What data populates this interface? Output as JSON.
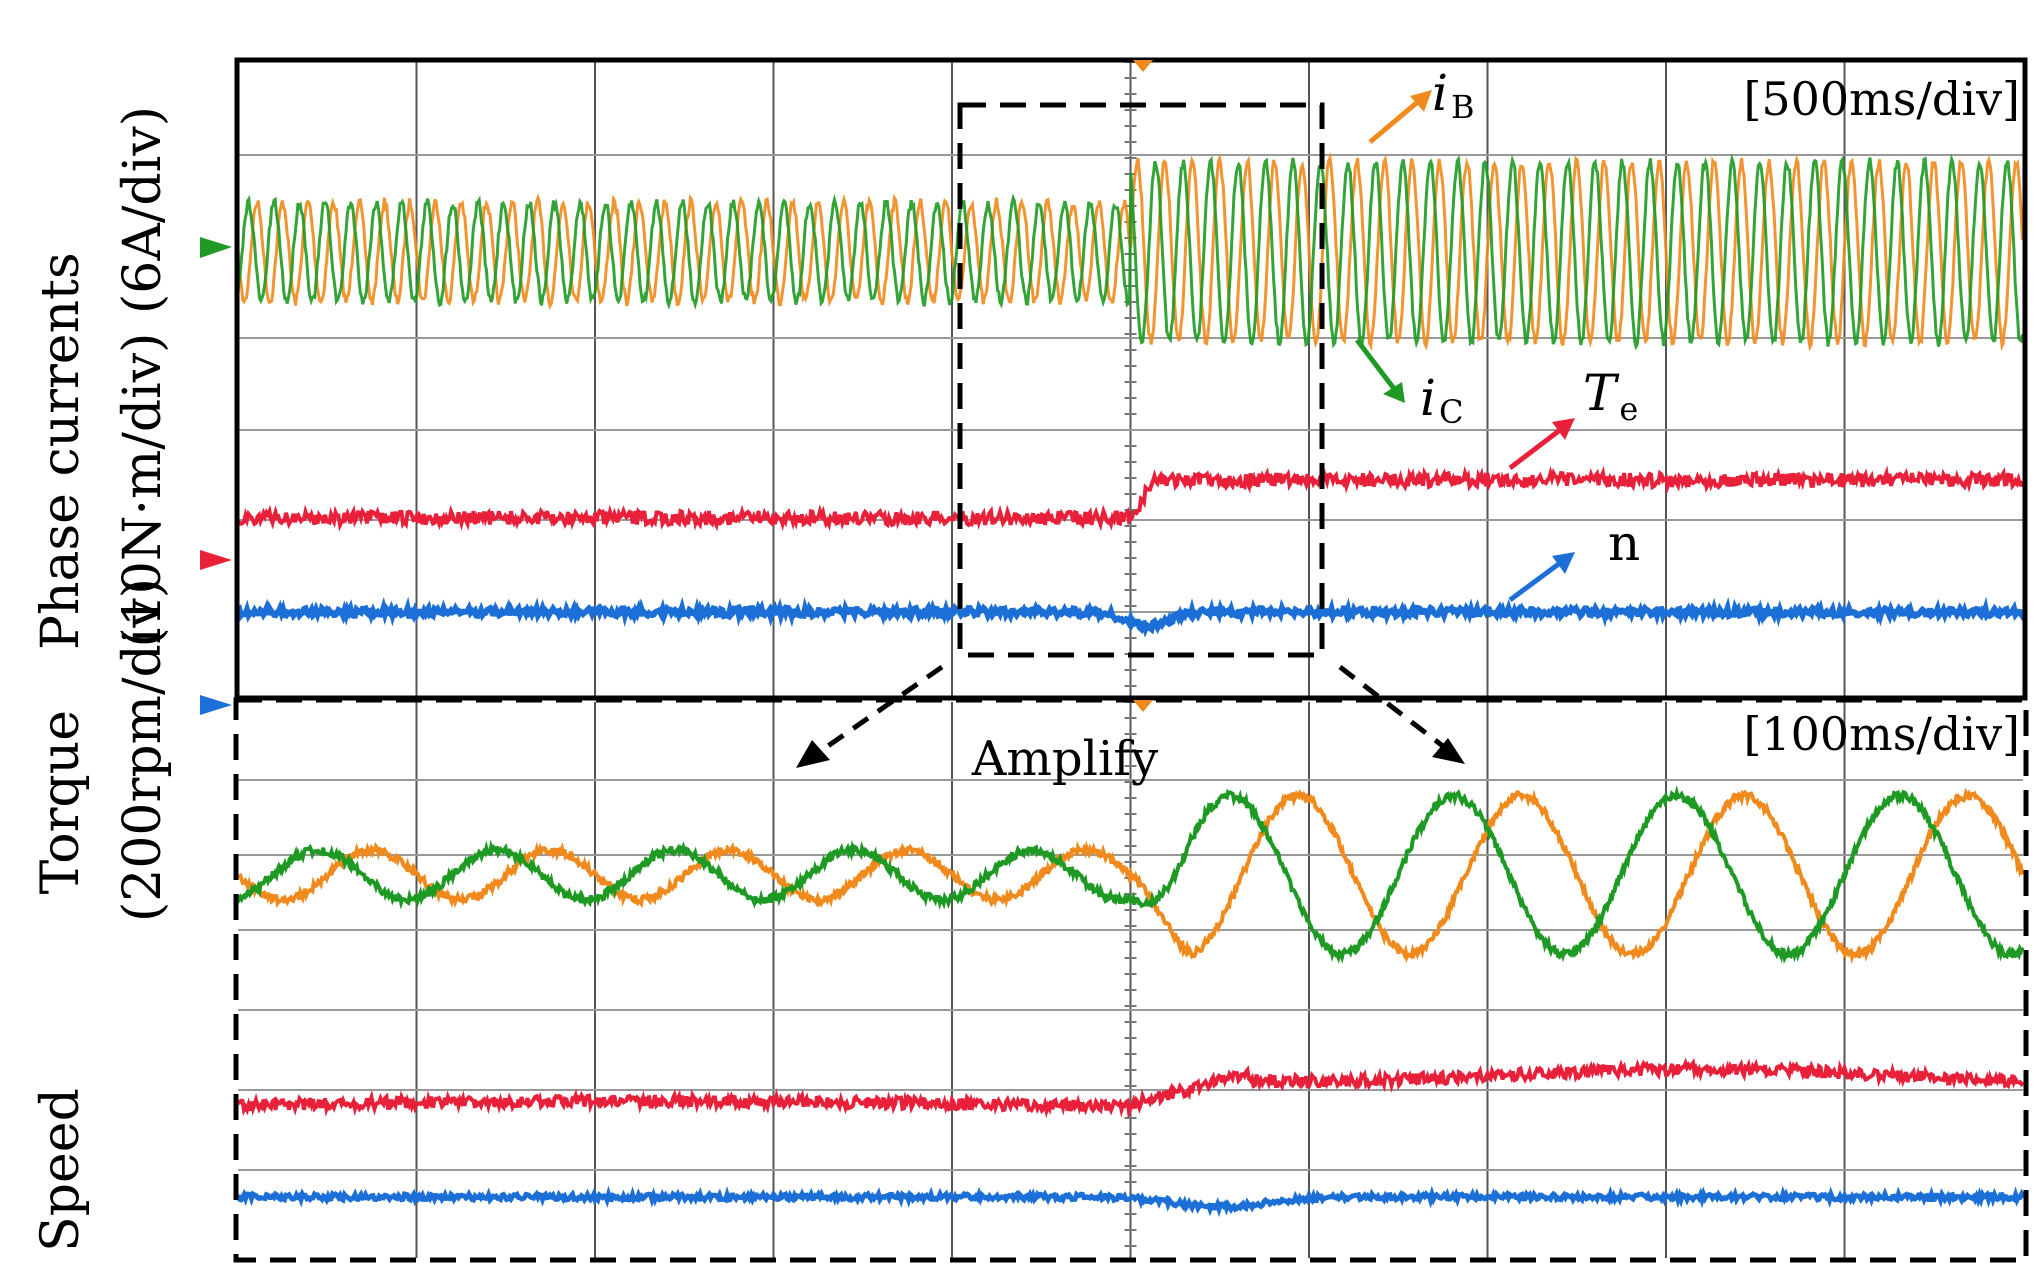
{
  "y_axis_labels": {
    "phase_currents": [
      "Phase currents",
      "(6A/div)"
    ],
    "torque": [
      "Torque",
      "(10N·m/div)"
    ],
    "speed": [
      "Speed",
      "(200rpm/div)"
    ]
  },
  "amplify_label": "Amplify",
  "colors": {
    "iB": "#F08A1C",
    "iC": "#1E9A24",
    "Te": "#E8203A",
    "n": "#1D6FD8"
  },
  "chart_data": [
    {
      "type": "line",
      "panel": "top",
      "timebase": "[500ms/div]",
      "divisions_x": 10,
      "divisions_y": 8,
      "grid": true,
      "annotations": {
        "iB": {
          "main": "i",
          "sub": "B"
        },
        "iC": {
          "main": "i",
          "sub": "C"
        },
        "Te": {
          "main": "T",
          "sub": "e"
        },
        "n": {
          "main": "n",
          "sub": ""
        }
      },
      "series": [
        {
          "name": "iB",
          "signal": "sinusoid",
          "amplitude_div": [
            0.55,
            1.0
          ],
          "cycles_per_div": [
            7,
            6.5
          ],
          "step_at_div": 5
        },
        {
          "name": "iC",
          "signal": "sinusoid",
          "amplitude_div": [
            0.55,
            1.0
          ],
          "cycles_per_div": [
            7,
            6.5
          ],
          "step_at_div": 5
        },
        {
          "name": "Te",
          "signal": "step",
          "level_div": [
            2.5,
            2.95
          ],
          "step_at_div": 5
        },
        {
          "name": "n",
          "signal": "steady_with_dip",
          "level_div": [
            1.5,
            1.5
          ],
          "dip_at_div": 5.1
        }
      ]
    },
    {
      "type": "line",
      "panel": "bottom",
      "timebase": "[100ms/div]",
      "divisions_x": 10,
      "grid": true,
      "series": [
        {
          "name": "iB",
          "signal": "sinusoid",
          "amplitude_div": [
            0.25,
            0.8
          ],
          "cycles_per_div": [
            1.0,
            0.8
          ],
          "step_at_div": 5
        },
        {
          "name": "iC",
          "signal": "sinusoid",
          "amplitude_div": [
            0.25,
            0.8
          ],
          "cycles_per_div": [
            1.0,
            0.8
          ],
          "step_at_div": 5
        },
        {
          "name": "Te",
          "signal": "step",
          "level_div": [
            1.0,
            1.15
          ],
          "step_at_div": 5
        },
        {
          "name": "n",
          "signal": "steady_with_dip",
          "level_div": [
            0.45,
            0.45
          ],
          "dip_at_div": 5.5
        }
      ]
    }
  ]
}
